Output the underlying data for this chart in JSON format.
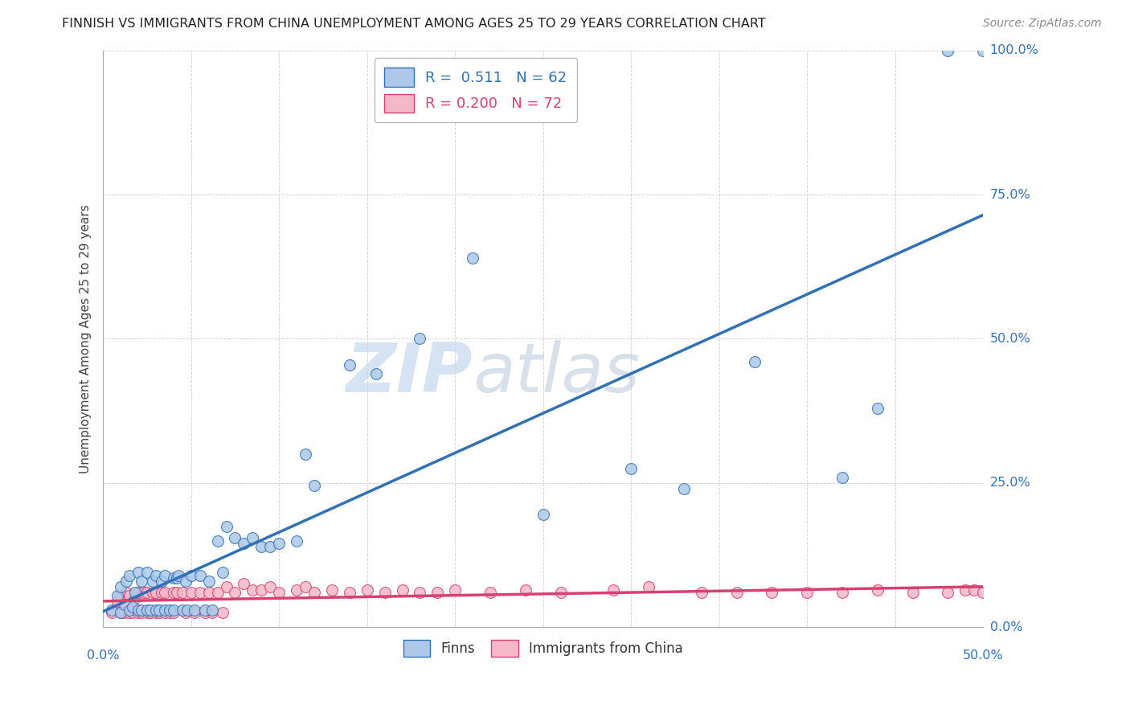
{
  "title": "FINNISH VS IMMIGRANTS FROM CHINA UNEMPLOYMENT AMONG AGES 25 TO 29 YEARS CORRELATION CHART",
  "source": "Source: ZipAtlas.com",
  "ylabel_label": "Unemployment Among Ages 25 to 29 years",
  "xmin": 0.0,
  "xmax": 0.5,
  "ymin": 0.0,
  "ymax": 1.0,
  "watermark_zip": "ZIP",
  "watermark_atlas": "atlas",
  "finns_color": "#adc8e8",
  "china_color": "#f4b8c8",
  "finns_line_color": "#3070b8",
  "china_line_color": "#d84070",
  "grid_color": "#cccccc",
  "background_color": "#ffffff",
  "finns_x": [
    0.005,
    0.008,
    0.01,
    0.01,
    0.012,
    0.013,
    0.015,
    0.015,
    0.017,
    0.018,
    0.02,
    0.02,
    0.022,
    0.022,
    0.025,
    0.025,
    0.027,
    0.028,
    0.03,
    0.03,
    0.032,
    0.033,
    0.035,
    0.035,
    0.038,
    0.04,
    0.04,
    0.042,
    0.043,
    0.045,
    0.047,
    0.048,
    0.05,
    0.052,
    0.055,
    0.058,
    0.06,
    0.062,
    0.065,
    0.068,
    0.07,
    0.075,
    0.08,
    0.085,
    0.09,
    0.095,
    0.1,
    0.11,
    0.115,
    0.12,
    0.14,
    0.155,
    0.18,
    0.21,
    0.25,
    0.3,
    0.33,
    0.37,
    0.42,
    0.44,
    0.48,
    0.5
  ],
  "finns_y": [
    0.03,
    0.055,
    0.025,
    0.07,
    0.04,
    0.08,
    0.03,
    0.09,
    0.035,
    0.06,
    0.03,
    0.095,
    0.03,
    0.08,
    0.03,
    0.095,
    0.03,
    0.08,
    0.03,
    0.09,
    0.03,
    0.08,
    0.03,
    0.09,
    0.03,
    0.085,
    0.03,
    0.085,
    0.09,
    0.03,
    0.08,
    0.03,
    0.09,
    0.03,
    0.09,
    0.03,
    0.08,
    0.03,
    0.15,
    0.095,
    0.175,
    0.155,
    0.145,
    0.155,
    0.14,
    0.14,
    0.145,
    0.15,
    0.3,
    0.245,
    0.455,
    0.44,
    0.5,
    0.64,
    0.195,
    0.275,
    0.24,
    0.46,
    0.26,
    0.38,
    1.0,
    1.0
  ],
  "china_x": [
    0.005,
    0.008,
    0.01,
    0.01,
    0.012,
    0.013,
    0.015,
    0.015,
    0.017,
    0.018,
    0.02,
    0.02,
    0.022,
    0.023,
    0.025,
    0.025,
    0.027,
    0.028,
    0.03,
    0.03,
    0.032,
    0.033,
    0.035,
    0.035,
    0.038,
    0.04,
    0.04,
    0.042,
    0.045,
    0.047,
    0.05,
    0.052,
    0.055,
    0.058,
    0.06,
    0.062,
    0.065,
    0.068,
    0.07,
    0.075,
    0.08,
    0.085,
    0.09,
    0.095,
    0.1,
    0.11,
    0.115,
    0.12,
    0.13,
    0.14,
    0.15,
    0.16,
    0.17,
    0.18,
    0.19,
    0.2,
    0.22,
    0.24,
    0.26,
    0.29,
    0.31,
    0.34,
    0.36,
    0.38,
    0.4,
    0.42,
    0.44,
    0.46,
    0.48,
    0.49,
    0.495,
    0.5
  ],
  "china_y": [
    0.025,
    0.045,
    0.025,
    0.055,
    0.025,
    0.06,
    0.025,
    0.055,
    0.025,
    0.05,
    0.025,
    0.06,
    0.025,
    0.06,
    0.025,
    0.06,
    0.025,
    0.06,
    0.025,
    0.06,
    0.025,
    0.06,
    0.025,
    0.06,
    0.025,
    0.06,
    0.025,
    0.06,
    0.06,
    0.025,
    0.06,
    0.025,
    0.06,
    0.025,
    0.06,
    0.025,
    0.06,
    0.025,
    0.07,
    0.06,
    0.075,
    0.065,
    0.065,
    0.07,
    0.06,
    0.065,
    0.07,
    0.06,
    0.065,
    0.06,
    0.065,
    0.06,
    0.065,
    0.06,
    0.06,
    0.065,
    0.06,
    0.065,
    0.06,
    0.065,
    0.07,
    0.06,
    0.06,
    0.06,
    0.06,
    0.06,
    0.065,
    0.06,
    0.06,
    0.065,
    0.065,
    0.06
  ],
  "ytick_labels": [
    "0.0%",
    "25.0%",
    "50.0%",
    "75.0%",
    "100.0%"
  ],
  "ytick_values": [
    0.0,
    0.25,
    0.5,
    0.75,
    1.0
  ],
  "xtick_left_label": "0.0%",
  "xtick_right_label": "50.0%",
  "legend_r1": "R =  0.511",
  "legend_n1": "N = 62",
  "legend_r2": "R = 0.200",
  "legend_n2": "N = 72",
  "bottom_legend_label1": "Finns",
  "bottom_legend_label2": "Immigrants from China"
}
